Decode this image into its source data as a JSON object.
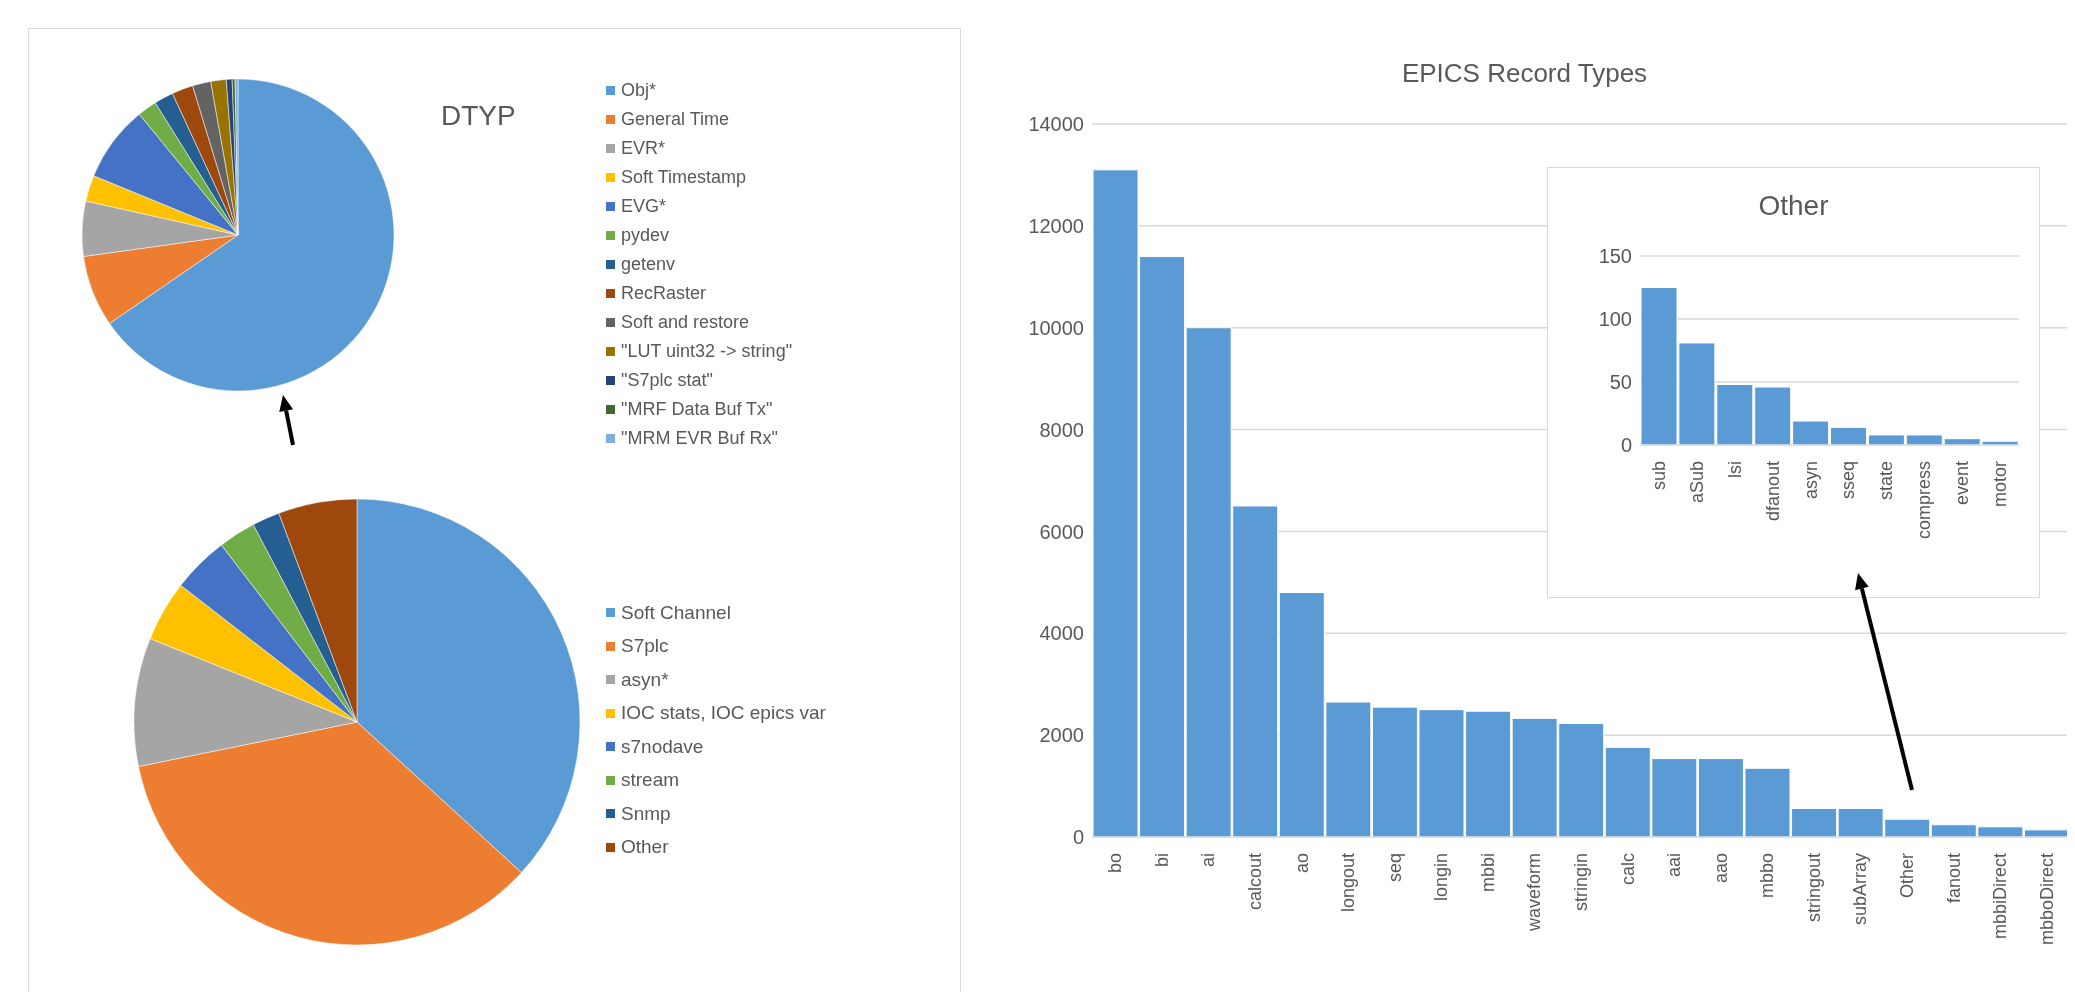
{
  "chart_data": [
    {
      "type": "pie",
      "title": "DTYP",
      "categories": [
        "Obj*",
        "General Time",
        "EVR*",
        "Soft Timestamp",
        "EVG*",
        "pydev",
        "getenv",
        "RecRaster",
        "Soft and restore",
        "\"LUT uint32 -> string\"",
        "\"S7plc stat\"",
        "\"MRF Data Buf Tx\"",
        "\"MRM EVR Buf Rx\""
      ],
      "values": [
        65.4,
        7.4,
        5.7,
        2.7,
        7.9,
        2.0,
        2.0,
        2.2,
        1.9,
        1.6,
        0.6,
        0.3,
        0.3
      ],
      "colors": [
        "#5b9bd5",
        "#ed7d31",
        "#a5a5a5",
        "#ffc000",
        "#4472c4",
        "#70ad47",
        "#255e91",
        "#9e480e",
        "#636363",
        "#997300",
        "#264478",
        "#43682b",
        "#7cafdd"
      ],
      "legend": "right"
    },
    {
      "type": "pie",
      "categories": [
        "Soft Channel",
        "S7plc",
        "asyn*",
        "IOC stats, IOC epics var",
        "s7nodave",
        "stream",
        "Snmp",
        "Other"
      ],
      "values": [
        36.8,
        35.0,
        9.3,
        4.4,
        4.1,
        2.7,
        2.0,
        5.7
      ],
      "colors": [
        "#5b9bd5",
        "#ed7d31",
        "#a5a5a5",
        "#ffc000",
        "#4472c4",
        "#70ad47",
        "#255e91",
        "#9e480e"
      ],
      "legend": "right"
    },
    {
      "type": "bar",
      "title": "EPICS Record Types",
      "categories": [
        "bo",
        "bi",
        "ai",
        "calcout",
        "ao",
        "longout",
        "seq",
        "longin",
        "mbbi",
        "waveform",
        "stringin",
        "calc",
        "aai",
        "aao",
        "mbbo",
        "stringout",
        "subArray",
        "Other",
        "fanout",
        "mbbiDirect",
        "mbboDirect"
      ],
      "values": [
        13100,
        11400,
        10000,
        6500,
        4800,
        2650,
        2550,
        2500,
        2470,
        2330,
        2230,
        1760,
        1540,
        1540,
        1350,
        560,
        560,
        350,
        240,
        200,
        140
      ],
      "color": "#5b9bd5",
      "ylim": [
        0,
        14000
      ],
      "yticks": [
        0,
        2000,
        4000,
        6000,
        8000,
        10000,
        12000,
        14000
      ],
      "grid": "y"
    },
    {
      "type": "bar",
      "title": "Other",
      "categories": [
        "sub",
        "aSub",
        "lsi",
        "dfanout",
        "asyn",
        "sseq",
        "state",
        "compress",
        "event",
        "motor"
      ],
      "values": [
        125,
        81,
        48,
        46,
        19,
        14,
        8,
        8,
        5,
        3
      ],
      "color": "#5b9bd5",
      "ylim": [
        0,
        150
      ],
      "yticks": [
        0,
        50,
        100,
        150
      ],
      "grid": "y"
    }
  ]
}
